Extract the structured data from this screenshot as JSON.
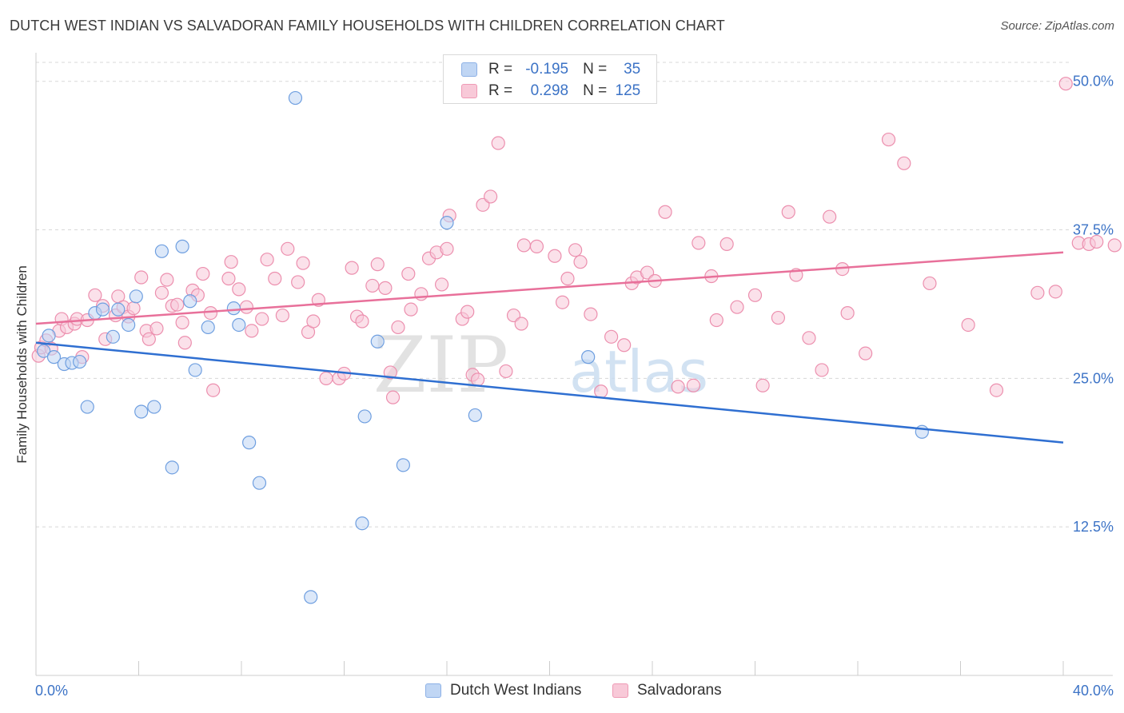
{
  "title": "DUTCH WEST INDIAN VS SALVADORAN FAMILY HOUSEHOLDS WITH CHILDREN CORRELATION CHART",
  "source": "Source: ZipAtlas.com",
  "watermark": {
    "zip": "ZIP",
    "atlas": "atlas"
  },
  "colors": {
    "blue_fill": "#c0d6f4",
    "blue_stroke": "#6f9fe0",
    "blue_line": "#2f6fd1",
    "pink_fill": "#f8c9d8",
    "pink_stroke": "#ec8fae",
    "pink_line": "#e8709a",
    "tick_label": "#3c73c6",
    "grid": "#d8d8d8"
  },
  "legend": {
    "series1": {
      "r_label": "R =",
      "r_value": "-0.195",
      "n_label": "N =",
      "n_value": "35"
    },
    "series2": {
      "r_label": "R =",
      "r_value": "0.298",
      "n_label": "N =",
      "n_value": "125"
    }
  },
  "bottom_legend": {
    "series1": "Dutch West Indians",
    "series2": "Salvadorans"
  },
  "chart_data": {
    "type": "scatter",
    "title": "DUTCH WEST INDIAN VS SALVADORAN FAMILY HOUSEHOLDS WITH CHILDREN CORRELATION CHART",
    "xlabel": "",
    "ylabel": "Family Households with Children",
    "xlim": [
      0,
      40
    ],
    "ylim": [
      0,
      52
    ],
    "x_tick_labels": [
      "0.0%",
      "40.0%"
    ],
    "y_ticks": [
      12.5,
      25.0,
      37.5,
      50.0
    ],
    "y_tick_labels": [
      "12.5%",
      "25.0%",
      "37.5%",
      "50.0%"
    ],
    "grid": true,
    "legend_placement": "top-center",
    "series": [
      {
        "name": "Dutch West Indians",
        "color": "#c0d6f4",
        "r": -0.195,
        "n": 35,
        "trend": {
          "x": [
            0,
            40
          ],
          "y": [
            28.0,
            19.6
          ]
        },
        "points": [
          [
            0.3,
            27.3
          ],
          [
            0.5,
            28.6
          ],
          [
            0.7,
            26.8
          ],
          [
            1.1,
            26.2
          ],
          [
            1.4,
            26.3
          ],
          [
            1.7,
            26.4
          ],
          [
            2.0,
            22.6
          ],
          [
            2.3,
            30.5
          ],
          [
            2.6,
            30.8
          ],
          [
            3.0,
            28.5
          ],
          [
            3.2,
            30.8
          ],
          [
            3.6,
            29.5
          ],
          [
            3.9,
            31.9
          ],
          [
            4.1,
            22.2
          ],
          [
            4.6,
            22.6
          ],
          [
            4.9,
            35.7
          ],
          [
            5.3,
            17.5
          ],
          [
            5.7,
            36.1
          ],
          [
            6.0,
            31.5
          ],
          [
            6.2,
            25.7
          ],
          [
            6.7,
            29.3
          ],
          [
            7.7,
            30.9
          ],
          [
            7.9,
            29.5
          ],
          [
            8.3,
            19.6
          ],
          [
            8.7,
            16.2
          ],
          [
            10.1,
            48.6
          ],
          [
            10.7,
            6.6
          ],
          [
            12.7,
            12.8
          ],
          [
            12.8,
            21.8
          ],
          [
            13.3,
            28.1
          ],
          [
            14.3,
            17.7
          ],
          [
            16.0,
            38.1
          ],
          [
            17.1,
            21.9
          ],
          [
            21.5,
            26.8
          ],
          [
            34.5,
            20.5
          ]
        ]
      },
      {
        "name": "Salvadorans",
        "color": "#f8c9d8",
        "r": 0.298,
        "n": 125,
        "trend": {
          "x": [
            0,
            40
          ],
          "y": [
            29.6,
            35.6
          ]
        },
        "points": [
          [
            0.1,
            26.9
          ],
          [
            0.2,
            27.6
          ],
          [
            0.4,
            28.2
          ],
          [
            0.6,
            27.5
          ],
          [
            0.9,
            29.0
          ],
          [
            1.0,
            30.0
          ],
          [
            1.2,
            29.3
          ],
          [
            1.5,
            29.6
          ],
          [
            1.6,
            30.0
          ],
          [
            1.8,
            26.8
          ],
          [
            2.0,
            29.9
          ],
          [
            2.3,
            32.0
          ],
          [
            2.6,
            31.1
          ],
          [
            2.7,
            28.3
          ],
          [
            3.1,
            30.3
          ],
          [
            3.2,
            31.9
          ],
          [
            3.4,
            31.0
          ],
          [
            3.6,
            30.2
          ],
          [
            3.8,
            30.9
          ],
          [
            4.1,
            33.5
          ],
          [
            4.3,
            29.0
          ],
          [
            4.4,
            28.3
          ],
          [
            4.7,
            29.2
          ],
          [
            4.9,
            32.2
          ],
          [
            5.1,
            33.3
          ],
          [
            5.3,
            31.1
          ],
          [
            5.5,
            31.2
          ],
          [
            5.7,
            29.7
          ],
          [
            5.8,
            28.0
          ],
          [
            6.1,
            32.4
          ],
          [
            6.3,
            32.0
          ],
          [
            6.5,
            33.8
          ],
          [
            6.8,
            30.5
          ],
          [
            6.9,
            24.0
          ],
          [
            7.5,
            33.4
          ],
          [
            7.6,
            34.8
          ],
          [
            7.9,
            32.5
          ],
          [
            8.2,
            31.0
          ],
          [
            8.4,
            29.0
          ],
          [
            8.8,
            30.0
          ],
          [
            9.0,
            35.0
          ],
          [
            9.3,
            33.4
          ],
          [
            9.6,
            30.3
          ],
          [
            9.8,
            35.9
          ],
          [
            10.2,
            33.1
          ],
          [
            10.4,
            34.7
          ],
          [
            10.6,
            28.9
          ],
          [
            10.8,
            29.8
          ],
          [
            11.0,
            31.6
          ],
          [
            11.3,
            25.0
          ],
          [
            11.8,
            25.0
          ],
          [
            12.0,
            25.4
          ],
          [
            12.3,
            34.3
          ],
          [
            12.5,
            30.2
          ],
          [
            12.7,
            29.8
          ],
          [
            13.1,
            32.8
          ],
          [
            13.3,
            34.6
          ],
          [
            13.6,
            32.6
          ],
          [
            13.8,
            25.5
          ],
          [
            13.9,
            23.4
          ],
          [
            14.1,
            29.3
          ],
          [
            14.5,
            33.8
          ],
          [
            14.6,
            30.8
          ],
          [
            15.0,
            32.1
          ],
          [
            15.3,
            35.1
          ],
          [
            15.6,
            35.6
          ],
          [
            15.8,
            32.9
          ],
          [
            16.0,
            35.9
          ],
          [
            16.1,
            38.7
          ],
          [
            16.6,
            30.0
          ],
          [
            16.8,
            30.6
          ],
          [
            17.0,
            25.3
          ],
          [
            17.2,
            24.9
          ],
          [
            17.4,
            39.6
          ],
          [
            17.7,
            40.3
          ],
          [
            18.0,
            44.8
          ],
          [
            18.3,
            25.6
          ],
          [
            18.6,
            30.3
          ],
          [
            18.9,
            29.6
          ],
          [
            19.0,
            36.2
          ],
          [
            19.5,
            36.1
          ],
          [
            20.2,
            35.3
          ],
          [
            20.5,
            31.4
          ],
          [
            20.7,
            33.4
          ],
          [
            21.0,
            35.8
          ],
          [
            21.2,
            34.8
          ],
          [
            21.6,
            30.4
          ],
          [
            22.0,
            23.9
          ],
          [
            22.4,
            28.5
          ],
          [
            22.9,
            27.8
          ],
          [
            23.2,
            33.0
          ],
          [
            23.4,
            33.5
          ],
          [
            23.8,
            33.9
          ],
          [
            24.1,
            33.2
          ],
          [
            24.5,
            39.0
          ],
          [
            25.0,
            24.3
          ],
          [
            25.6,
            24.4
          ],
          [
            25.8,
            36.4
          ],
          [
            26.3,
            33.6
          ],
          [
            26.5,
            29.9
          ],
          [
            26.9,
            36.3
          ],
          [
            27.3,
            31.0
          ],
          [
            28.0,
            32.0
          ],
          [
            28.3,
            24.4
          ],
          [
            28.9,
            30.1
          ],
          [
            29.3,
            39.0
          ],
          [
            29.6,
            33.7
          ],
          [
            30.1,
            28.4
          ],
          [
            30.6,
            25.7
          ],
          [
            30.9,
            38.6
          ],
          [
            31.4,
            34.2
          ],
          [
            31.6,
            30.5
          ],
          [
            32.3,
            27.1
          ],
          [
            33.2,
            45.1
          ],
          [
            33.8,
            43.1
          ],
          [
            34.8,
            33.0
          ],
          [
            36.3,
            29.5
          ],
          [
            37.4,
            24.0
          ],
          [
            39.0,
            32.2
          ],
          [
            39.7,
            32.3
          ],
          [
            40.1,
            49.8
          ],
          [
            40.6,
            36.4
          ],
          [
            41.0,
            36.3
          ],
          [
            41.3,
            36.5
          ],
          [
            42.0,
            36.2
          ]
        ]
      }
    ]
  }
}
